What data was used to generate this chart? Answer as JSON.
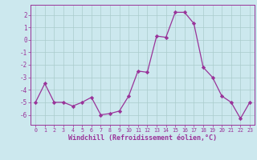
{
  "x": [
    0,
    1,
    2,
    3,
    4,
    5,
    6,
    7,
    8,
    9,
    10,
    11,
    12,
    13,
    14,
    15,
    16,
    17,
    18,
    19,
    20,
    21,
    22,
    23
  ],
  "y": [
    -5.0,
    -3.5,
    -5.0,
    -5.0,
    -5.3,
    -5.0,
    -4.6,
    -6.0,
    -5.9,
    -5.7,
    -4.5,
    -2.5,
    -2.6,
    0.3,
    0.2,
    2.2,
    2.2,
    1.3,
    -2.2,
    -3.0,
    -4.5,
    -5.0,
    -6.3,
    -5.0
  ],
  "line_color": "#993399",
  "marker": "D",
  "marker_size": 2.2,
  "bg_color": "#cce8ee",
  "grid_color": "#aacccc",
  "tick_color": "#993399",
  "xlabel": "Windchill (Refroidissement éolien,°C)",
  "xlabel_fontsize": 6.0,
  "ylabel_ticks": [
    2,
    1,
    0,
    -1,
    -2,
    -3,
    -4,
    -5,
    -6
  ],
  "ylim": [
    -6.8,
    2.8
  ],
  "xlim": [
    -0.5,
    23.5
  ],
  "axis_color": "#993399",
  "linewidth": 0.9
}
